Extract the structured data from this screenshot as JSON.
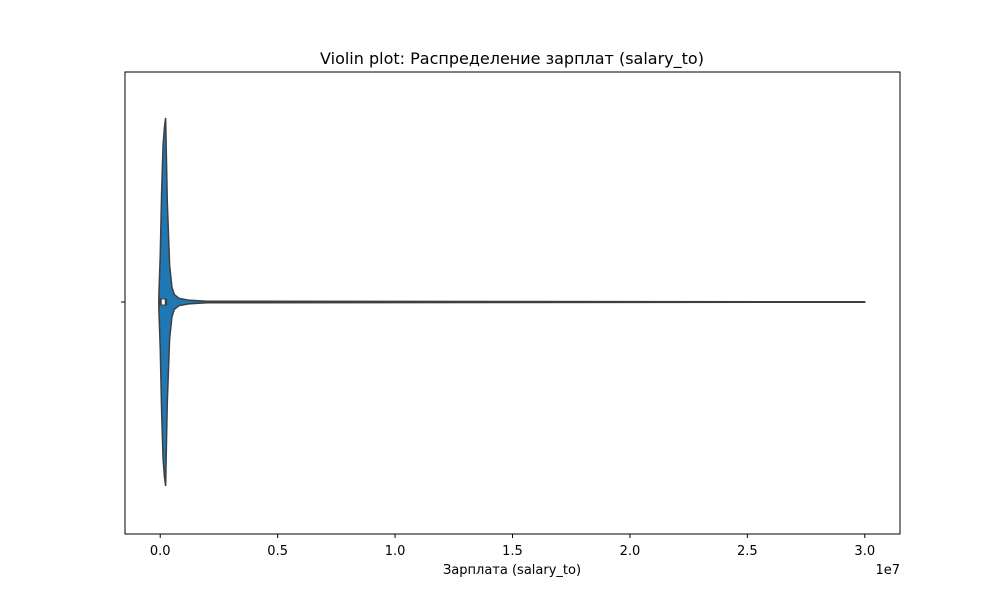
{
  "chart_data": {
    "type": "violin",
    "title": "Violin plot: Распределение зарплат (salary_to)",
    "xlabel": "Зарплата (salary_to)",
    "ylabel": "",
    "x_offset_label": "1e7",
    "xlim": [
      -1500000,
      31500000
    ],
    "x_ticks": [
      0,
      0.5,
      1.0,
      1.5,
      2.0,
      2.5,
      3.0
    ],
    "x_tick_labels": [
      "0.0",
      "0.5",
      "1.0",
      "1.5",
      "2.0",
      "2.5",
      "3.0"
    ],
    "x_tick_values": [
      0,
      5000000,
      10000000,
      15000000,
      20000000,
      25000000,
      30000000
    ],
    "grid": false,
    "series": [
      {
        "color": "#1f77b4",
        "min": 0,
        "max": 30000000,
        "q1": 0,
        "median": 130000,
        "q3": 250000,
        "density_profile": [
          [
            -60000,
            0.03
          ],
          [
            0,
            0.25
          ],
          [
            60000,
            0.6
          ],
          [
            120000,
            0.85
          ],
          [
            180000,
            0.95
          ],
          [
            230000,
            1.0
          ],
          [
            300000,
            0.55
          ],
          [
            400000,
            0.2
          ],
          [
            500000,
            0.08
          ],
          [
            600000,
            0.04
          ],
          [
            800000,
            0.02
          ],
          [
            1200000,
            0.01
          ],
          [
            2000000,
            0.004
          ],
          [
            30000000,
            0.001
          ]
        ]
      }
    ]
  }
}
